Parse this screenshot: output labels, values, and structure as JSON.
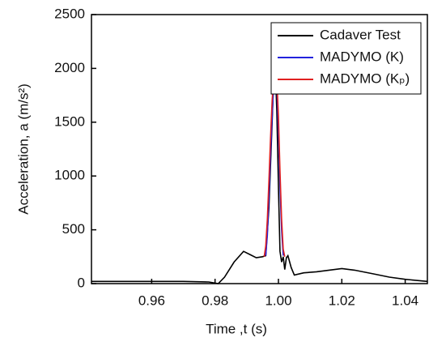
{
  "chart_data": {
    "type": "line",
    "xlabel": "Time ,t (s)",
    "ylabel": "Acceleration, a (m/s²)",
    "xlim": [
      0.941,
      1.047
    ],
    "ylim": [
      0,
      2500
    ],
    "xticks": [
      0.96,
      0.98,
      {
        "value": 1,
        "label": "1.00"
      },
      1.02,
      1.04
    ],
    "yticks": [
      0,
      500,
      1000,
      1500,
      2000,
      2500
    ],
    "legend": "upper right",
    "series": [
      {
        "name": "Cadaver Test",
        "color": "#000000",
        "x": [
          0.941,
          0.95,
          0.96,
          0.97,
          0.978,
          0.981,
          0.983,
          0.986,
          0.989,
          0.991,
          0.993,
          0.995,
          0.996,
          0.997,
          0.998,
          0.9985,
          0.999,
          0.9995,
          1.0,
          1.0005,
          1.001,
          1.0015,
          1.002,
          1.0025,
          1.003,
          1.004,
          1.005,
          1.008,
          1.012,
          1.016,
          1.02,
          1.024,
          1.03,
          1.035,
          1.04,
          1.047
        ],
        "values": [
          20,
          20,
          20,
          20,
          15,
          0,
          60,
          200,
          300,
          270,
          240,
          250,
          260,
          700,
          1500,
          1900,
          2020,
          1600,
          900,
          300,
          200,
          250,
          130,
          240,
          260,
          150,
          80,
          100,
          110,
          125,
          140,
          125,
          90,
          60,
          40,
          20
        ]
      },
      {
        "name": "MADYMO (K)",
        "color": "#2222dd",
        "x": [
          0.996,
          0.9965,
          0.997,
          0.9975,
          0.998,
          0.9985,
          0.999,
          0.9995,
          1.0,
          1.0005,
          1.001,
          1.0015
        ],
        "values": [
          260,
          450,
          800,
          1200,
          1550,
          1850,
          1950,
          1850,
          1400,
          900,
          500,
          260
        ]
      },
      {
        "name": "MADYMO (Kₚ)",
        "color": "#e02020",
        "x": [
          0.9955,
          0.996,
          0.9965,
          0.997,
          0.9975,
          0.998,
          0.9985,
          0.999,
          0.9995,
          1.0,
          1.0005,
          1.001,
          1.0015,
          1.002
        ],
        "values": [
          250,
          350,
          600,
          950,
          1350,
          1700,
          1930,
          1980,
          1900,
          1550,
          1050,
          600,
          320,
          250
        ]
      }
    ]
  }
}
